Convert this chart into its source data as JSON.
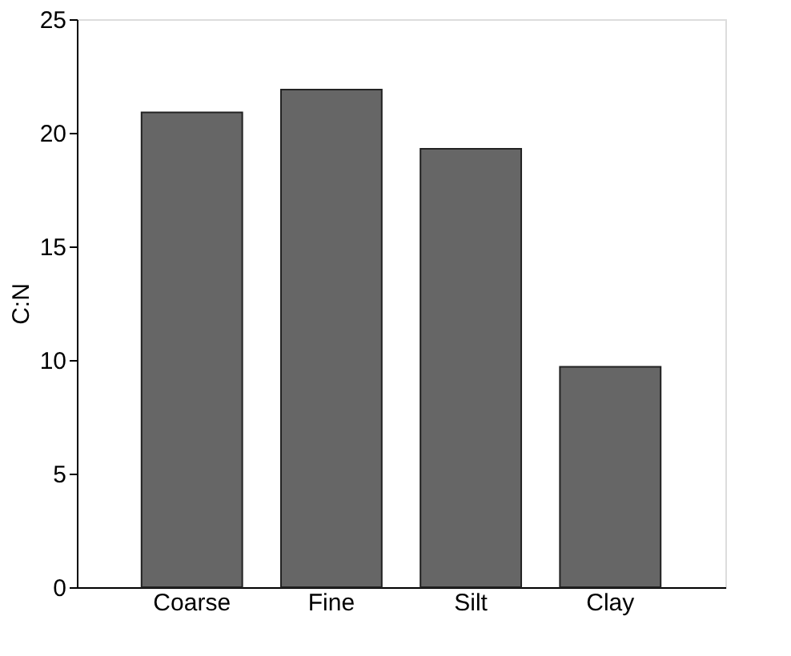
{
  "chart_data": {
    "type": "bar",
    "ylabel": "C:N",
    "categories": [
      "Coarse",
      "Fine",
      "Silt",
      "Clay"
    ],
    "values": [
      20.9,
      21.9,
      19.3,
      9.7
    ],
    "color": "#666666",
    "ylim": [
      0,
      25
    ],
    "yticks": [
      0,
      5,
      10,
      15,
      20,
      25
    ],
    "grid": false
  }
}
